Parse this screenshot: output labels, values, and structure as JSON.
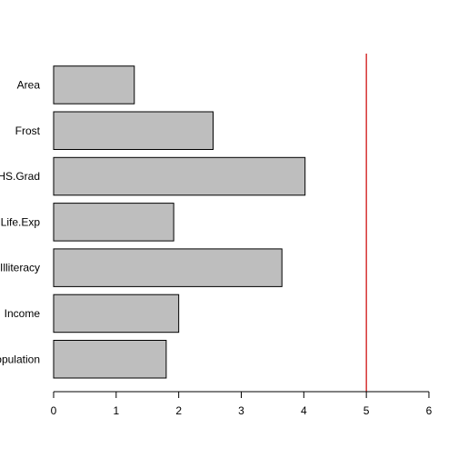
{
  "chart_data": {
    "type": "bar",
    "orientation": "horizontal",
    "categories": [
      "Population",
      "Income",
      "Illiteracy",
      "Life.Exp",
      "HS.Grad",
      "Frost",
      "Area"
    ],
    "values": [
      1.8,
      2.0,
      3.65,
      1.92,
      4.02,
      2.55,
      1.29
    ],
    "title": "",
    "xlabel": "",
    "ylabel": "",
    "xlim": [
      0,
      6
    ],
    "xticks": [
      0,
      1,
      2,
      3,
      4,
      5,
      6
    ],
    "reference_line": {
      "x": 5,
      "color": "#cc0000"
    },
    "bar_color": "#bebebe",
    "bar_edge_color": "#000000",
    "grid": false,
    "legend": "none"
  }
}
